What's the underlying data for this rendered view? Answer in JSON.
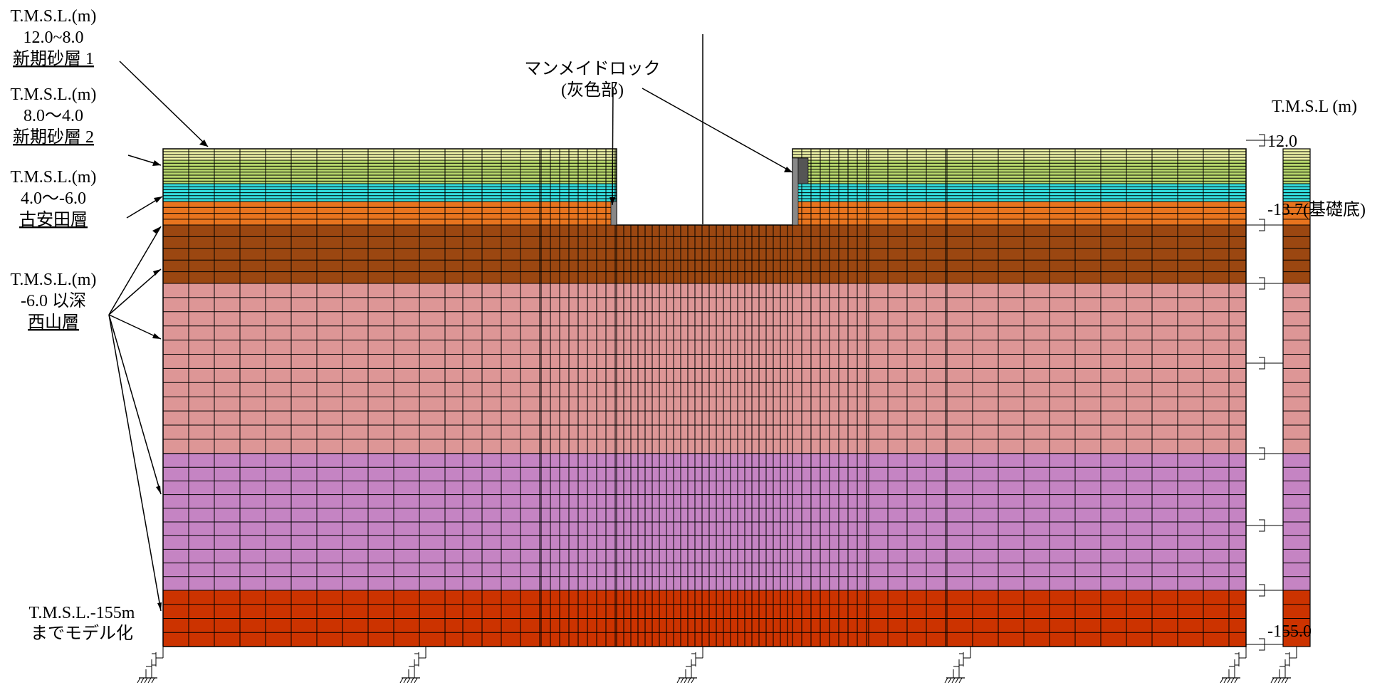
{
  "layer_labels": [
    {
      "tmsl": "T.M.S.L.(m)",
      "range": "12.0~8.0",
      "name": "新期砂層 1"
    },
    {
      "tmsl": "T.M.S.L.(m)",
      "range": "8.0〜4.0",
      "name": "新期砂層 2"
    },
    {
      "tmsl": "T.M.S.L.(m)",
      "range": "4.0〜-6.0",
      "name": "古安田層"
    },
    {
      "tmsl": "T.M.S.L.(m)",
      "range": "-6.0 以深",
      "name": "西山層"
    }
  ],
  "bottom_label": {
    "line1": "T.M.S.L.-155m",
    "line2": "までモデル化"
  },
  "manmade_rock": {
    "line1": "マンメイドロック",
    "line2": "(灰色部)"
  },
  "right_axis": {
    "title": "T.M.S.L (m)",
    "top": "12.0",
    "foundation": "-13.7(基礎底)",
    "bottom": "-155.0"
  },
  "colors": {
    "sand1": "#EEF3A6",
    "sand2": "#B6D66B",
    "sand3": "#33DDDD",
    "furuyasuda": "#E8741E",
    "nishiyama1": "#9B4711",
    "nishiyama2": "#DD9696",
    "nishiyama3": "#C584C3",
    "nishiyama4": "#CC3300",
    "manmade": "#888888"
  }
}
